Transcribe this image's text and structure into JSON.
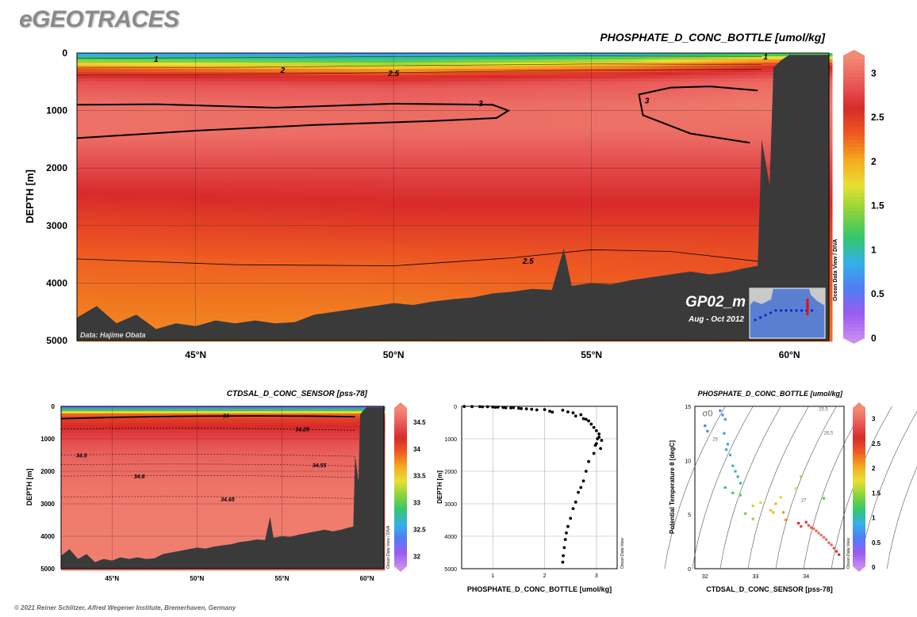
{
  "brand": "eGEOTRACES",
  "copyright": "© 2021 Reiner Schlitzer, Alfred Wegener Institute, Bremerhaven, Germany",
  "colors": {
    "bathymetry": "#3a3a3a",
    "contour": "#000000",
    "palette": [
      "#c98cf0",
      "#9b5cf0",
      "#4f7df5",
      "#35b0e8",
      "#33c76a",
      "#8ad33a",
      "#e8e035",
      "#f5a91e",
      "#ee5a22",
      "#d82a2a",
      "#e85a58",
      "#f28a75"
    ]
  },
  "chart_data": [
    {
      "type": "heatmap",
      "title": "PHOSPHATE_D_CONC_BOTTLE [umol/kg]",
      "ylabel": "DEPTH [m]",
      "xlabel": "",
      "xlim": [
        42,
        61
      ],
      "ylim": [
        5000,
        0
      ],
      "x_ticks": [
        45,
        50,
        55,
        60
      ],
      "x_tick_labels": [
        "45°N",
        "50°N",
        "55°N",
        "60°N"
      ],
      "y_ticks": [
        0,
        1000,
        2000,
        3000,
        4000,
        5000
      ],
      "y_tick_labels": [
        "0",
        "1000",
        "2000",
        "3000",
        "4000",
        "5000"
      ],
      "colorbar": {
        "range": [
          0,
          3.2
        ],
        "ticks": [
          0,
          0.5,
          1,
          1.5,
          2,
          2.5,
          3
        ],
        "tick_labels": [
          "0",
          "0.5",
          "1",
          "1.5",
          "2",
          "2.5",
          "3"
        ]
      },
      "contour_labels": [
        {
          "text": "1",
          "x": 44.0,
          "y": 110
        },
        {
          "text": "2",
          "x": 47.2,
          "y": 300
        },
        {
          "text": "2.5",
          "x": 50.0,
          "y": 360
        },
        {
          "text": "3",
          "x": 52.2,
          "y": 880
        },
        {
          "text": "3",
          "x": 56.4,
          "y": 830
        },
        {
          "text": "2.5",
          "x": 53.4,
          "y": 3620
        },
        {
          "text": "1",
          "x": 59.4,
          "y": 70
        }
      ],
      "vertical_profile": [
        {
          "lat": 42,
          "p": [
            [
              0,
              0.7
            ],
            [
              100,
              1.2
            ],
            [
              200,
              1.9
            ],
            [
              300,
              2.4
            ],
            [
              500,
              2.85
            ],
            [
              900,
              3.05
            ],
            [
              1400,
              3.05
            ],
            [
              2000,
              2.8
            ],
            [
              2500,
              2.6
            ],
            [
              3000,
              2.45
            ],
            [
              3600,
              2.3
            ],
            [
              4500,
              2.2
            ],
            [
              5000,
              2.15
            ]
          ]
        },
        {
          "lat": 50,
          "p": [
            [
              0,
              0.7
            ],
            [
              150,
              1.3
            ],
            [
              280,
              2.0
            ],
            [
              380,
              2.5
            ],
            [
              600,
              2.9
            ],
            [
              1000,
              3.02
            ],
            [
              1400,
              3.02
            ],
            [
              2000,
              2.8
            ],
            [
              2500,
              2.65
            ],
            [
              3000,
              2.5
            ],
            [
              3600,
              2.32
            ],
            [
              4500,
              2.2
            ],
            [
              5000,
              2.15
            ]
          ]
        },
        {
          "lat": 56,
          "p": [
            [
              0,
              0.8
            ],
            [
              120,
              1.5
            ],
            [
              220,
              2.1
            ],
            [
              330,
              2.5
            ],
            [
              500,
              2.9
            ],
            [
              900,
              3.05
            ],
            [
              1300,
              3.05
            ],
            [
              2000,
              2.8
            ],
            [
              2500,
              2.65
            ],
            [
              3000,
              2.5
            ],
            [
              3500,
              2.38
            ],
            [
              4500,
              2.25
            ],
            [
              5000,
              2.2
            ]
          ]
        },
        {
          "lat": 59.5,
          "p": [
            [
              0,
              1.0
            ],
            [
              80,
              1.7
            ],
            [
              160,
              2.3
            ],
            [
              250,
              2.6
            ],
            [
              500,
              3.0
            ],
            [
              900,
              3.1
            ],
            [
              1500,
              3.0
            ],
            [
              2000,
              2.8
            ],
            [
              2500,
              2.65
            ],
            [
              3000,
              2.5
            ],
            [
              3500,
              2.4
            ],
            [
              4500,
              2.3
            ],
            [
              5000,
              2.25
            ]
          ]
        }
      ],
      "bottom_depth": [
        [
          42,
          4600
        ],
        [
          42.5,
          4400
        ],
        [
          43.0,
          4700
        ],
        [
          43.5,
          4550
        ],
        [
          44.0,
          4800
        ],
        [
          44.5,
          4700
        ],
        [
          45.0,
          4750
        ],
        [
          45.5,
          4650
        ],
        [
          46.0,
          4700
        ],
        [
          46.5,
          4650
        ],
        [
          47.0,
          4700
        ],
        [
          47.5,
          4680
        ],
        [
          48.0,
          4550
        ],
        [
          48.5,
          4500
        ],
        [
          49.0,
          4450
        ],
        [
          49.5,
          4400
        ],
        [
          50.0,
          4350
        ],
        [
          50.5,
          4380
        ],
        [
          51.0,
          4320
        ],
        [
          51.5,
          4280
        ],
        [
          52.0,
          4250
        ],
        [
          52.5,
          4180
        ],
        [
          53.0,
          4150
        ],
        [
          53.5,
          4100
        ],
        [
          54.0,
          4120
        ],
        [
          54.3,
          3400
        ],
        [
          54.5,
          4050
        ],
        [
          55.0,
          4000
        ],
        [
          55.5,
          4020
        ],
        [
          56.0,
          3950
        ],
        [
          56.5,
          3900
        ],
        [
          57.0,
          3850
        ],
        [
          57.5,
          3800
        ],
        [
          58.0,
          3850
        ],
        [
          58.5,
          3800
        ],
        [
          58.8,
          3750
        ],
        [
          59.2,
          3700
        ],
        [
          59.3,
          1500
        ],
        [
          59.5,
          2300
        ],
        [
          59.6,
          250
        ],
        [
          59.8,
          120
        ],
        [
          60.0,
          30
        ],
        [
          61.0,
          30
        ]
      ],
      "station_label": "GP02_m",
      "period": "Aug - Oct 2012",
      "data_credit": "Data: Hajime Obata",
      "watermark": "Ocean Data View / DIVA"
    },
    {
      "type": "heatmap",
      "title": "CTDSAL_D_CONC_SENSOR [pss-78]",
      "ylabel": "DEPTH [m]",
      "xlabel": "",
      "xlim": [
        42,
        61
      ],
      "ylim": [
        5000,
        0
      ],
      "x_ticks": [
        45,
        50,
        55,
        60
      ],
      "x_tick_labels": [
        "45°N",
        "50°N",
        "55°N",
        "60°N"
      ],
      "y_ticks": [
        0,
        1000,
        2000,
        3000,
        4000,
        5000
      ],
      "y_tick_labels": [
        "0",
        "1000",
        "2000",
        "3000",
        "4000",
        "5000"
      ],
      "colorbar": {
        "range": [
          31.8,
          34.75
        ],
        "ticks": [
          32,
          32.5,
          33,
          33.5,
          34,
          34.5
        ],
        "tick_labels": [
          "32",
          "32.5",
          "33",
          "33.5",
          "34",
          "34.5"
        ]
      },
      "contour_labels": [
        {
          "text": "34",
          "x": 51.7,
          "y": 280
        },
        {
          "text": "34.25",
          "x": 56.2,
          "y": 700
        },
        {
          "text": "34.5",
          "x": 43.2,
          "y": 1500
        },
        {
          "text": "34.55",
          "x": 57.2,
          "y": 1800
        },
        {
          "text": "34.6",
          "x": 46.6,
          "y": 2150
        },
        {
          "text": "34.65",
          "x": 51.8,
          "y": 2850
        }
      ],
      "watermark": "Ocean Data View / DIVA"
    },
    {
      "type": "scatter",
      "title": "",
      "xlabel": "PHOSPHATE_D_CONC_BOTTLE [umol/kg]",
      "ylabel": "DEPTH [m]",
      "xlim": [
        0.4,
        3.4
      ],
      "ylim": [
        5000,
        0
      ],
      "x_ticks": [
        1,
        2,
        3
      ],
      "y_ticks": [
        0,
        1000,
        2000,
        3000,
        4000,
        5000
      ],
      "points": [
        [
          0.45,
          5
        ],
        [
          0.6,
          8
        ],
        [
          0.75,
          10
        ],
        [
          0.8,
          15
        ],
        [
          0.9,
          12
        ],
        [
          1.0,
          20
        ],
        [
          1.05,
          30
        ],
        [
          1.1,
          25
        ],
        [
          1.2,
          35
        ],
        [
          1.25,
          45
        ],
        [
          1.35,
          50
        ],
        [
          1.4,
          40
        ],
        [
          1.5,
          60
        ],
        [
          1.55,
          70
        ],
        [
          1.65,
          80
        ],
        [
          1.75,
          90
        ],
        [
          1.85,
          110
        ],
        [
          2.0,
          100
        ],
        [
          2.1,
          150
        ],
        [
          2.15,
          180
        ],
        [
          2.35,
          120
        ],
        [
          2.45,
          170
        ],
        [
          2.55,
          200
        ],
        [
          2.6,
          300
        ],
        [
          2.7,
          260
        ],
        [
          2.75,
          380
        ],
        [
          2.8,
          400
        ],
        [
          2.85,
          450
        ],
        [
          2.9,
          550
        ],
        [
          2.95,
          650
        ],
        [
          3.0,
          750
        ],
        [
          3.05,
          850
        ],
        [
          3.05,
          950
        ],
        [
          3.1,
          1050
        ],
        [
          3.0,
          1150
        ],
        [
          3.08,
          1300
        ],
        [
          2.98,
          1200
        ],
        [
          3.02,
          1000
        ],
        [
          2.95,
          1450
        ],
        [
          2.85,
          1700
        ],
        [
          2.8,
          2000
        ],
        [
          2.75,
          2300
        ],
        [
          2.7,
          2500
        ],
        [
          2.65,
          2650
        ],
        [
          2.6,
          2950
        ],
        [
          2.55,
          3150
        ],
        [
          2.5,
          3450
        ],
        [
          2.45,
          3700
        ],
        [
          2.42,
          3900
        ],
        [
          2.4,
          4100
        ],
        [
          2.38,
          4350
        ],
        [
          2.36,
          4600
        ],
        [
          2.35,
          4800
        ]
      ],
      "watermark": "Ocean Data View"
    },
    {
      "type": "scatter",
      "title": "PHOSPHATE_D_CONC_BOTTLE [umol/kg]",
      "xlabel": "CTDSAL_D_CONC_SENSOR [pss-78]",
      "ylabel": "Potential Temperature θ [degC]",
      "xlim": [
        31.8,
        34.75
      ],
      "ylim": [
        0,
        15
      ],
      "x_ticks": [
        32,
        33,
        34
      ],
      "y_ticks": [
        0,
        5,
        10,
        15
      ],
      "colorbar": {
        "range": [
          0,
          3.2
        ],
        "ticks": [
          0,
          0.5,
          1,
          1.5,
          2,
          2.5,
          3
        ],
        "tick_labels": [
          "0",
          "0.5",
          "1",
          "1.5",
          "2",
          "2.5",
          "3"
        ]
      },
      "sigma_label": "σ0",
      "isopycnal_labels": [
        "25",
        "25.5",
        "26.5",
        "27"
      ],
      "points": [
        [
          32.0,
          13.2,
          0.6
        ],
        [
          32.05,
          12.7,
          0.6
        ],
        [
          32.3,
          14.6,
          0.7
        ],
        [
          32.35,
          14.2,
          0.7
        ],
        [
          32.4,
          13.8,
          0.7
        ],
        [
          32.38,
          12.5,
          0.8
        ],
        [
          32.45,
          11.5,
          0.8
        ],
        [
          32.42,
          11.0,
          0.8
        ],
        [
          32.5,
          10.5,
          0.9
        ],
        [
          32.55,
          9.5,
          1.0
        ],
        [
          32.6,
          9.0,
          1.0
        ],
        [
          32.65,
          8.5,
          1.1
        ],
        [
          32.7,
          7.9,
          1.1
        ],
        [
          32.4,
          7.5,
          1.0
        ],
        [
          32.55,
          7.0,
          1.2
        ],
        [
          32.7,
          6.8,
          1.3
        ],
        [
          32.8,
          5.1,
          1.4
        ],
        [
          32.95,
          5.8,
          1.6
        ],
        [
          33.1,
          6.1,
          1.8
        ],
        [
          32.95,
          4.6,
          1.5
        ],
        [
          33.3,
          5.4,
          1.9
        ],
        [
          33.4,
          6.0,
          2.0
        ],
        [
          33.35,
          5.2,
          2.0
        ],
        [
          33.55,
          5.2,
          2.1
        ],
        [
          33.6,
          4.5,
          2.2
        ],
        [
          33.5,
          6.6,
          1.8
        ],
        [
          33.8,
          7.4,
          1.8
        ],
        [
          33.9,
          8.5,
          1.5
        ],
        [
          33.85,
          4.2,
          2.6
        ],
        [
          34.0,
          4.3,
          2.7
        ],
        [
          33.9,
          3.9,
          2.8
        ],
        [
          34.05,
          4.0,
          2.9
        ],
        [
          34.1,
          3.8,
          3.0
        ],
        [
          34.15,
          3.7,
          3.0
        ],
        [
          34.2,
          3.5,
          3.0
        ],
        [
          34.25,
          3.3,
          3.05
        ],
        [
          34.3,
          3.1,
          3.05
        ],
        [
          34.35,
          2.9,
          3.05
        ],
        [
          34.4,
          2.7,
          3.05
        ],
        [
          34.45,
          2.4,
          3.0
        ],
        [
          34.5,
          2.2,
          2.95
        ],
        [
          34.55,
          1.9,
          2.85
        ],
        [
          34.6,
          1.6,
          2.7
        ],
        [
          34.65,
          1.3,
          2.55
        ],
        [
          34.35,
          6.5,
          1.3
        ]
      ],
      "watermark": "Ocean Data View"
    }
  ]
}
